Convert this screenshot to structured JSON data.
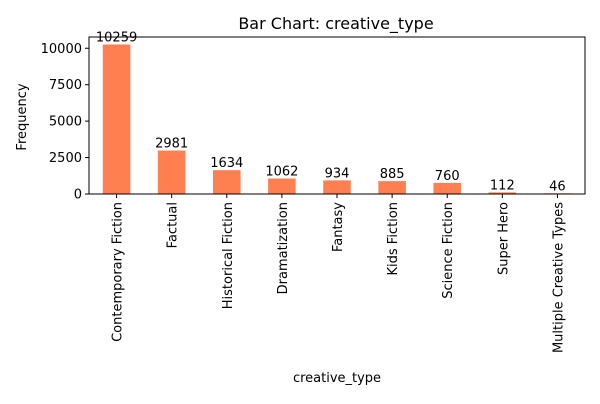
{
  "chart_data": {
    "type": "bar",
    "title": "Bar Chart: creative_type",
    "xlabel": "creative_type",
    "ylabel": "Frequency",
    "categories": [
      "Contemporary Fiction",
      "Factual",
      "Historical Fiction",
      "Dramatization",
      "Fantasy",
      "Kids Fiction",
      "Science Fiction",
      "Super Hero",
      "Multiple Creative Types"
    ],
    "values": [
      10259,
      2981,
      1634,
      1062,
      934,
      885,
      760,
      112,
      46
    ],
    "y_ticks": [
      0,
      2500,
      5000,
      7500,
      10000
    ],
    "ylim": [
      0,
      10772
    ],
    "bar_color": "#ff7f50",
    "grid": false,
    "legend": "none"
  }
}
